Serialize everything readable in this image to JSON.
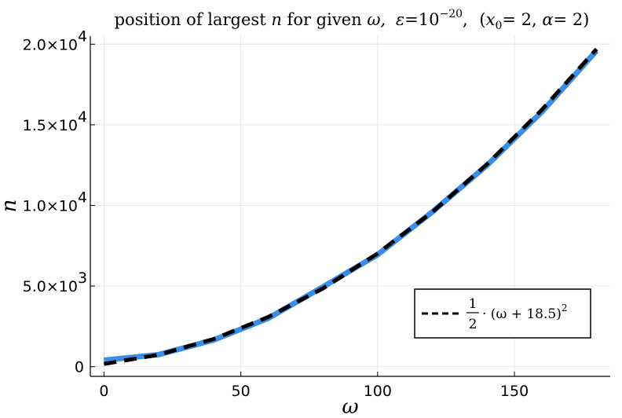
{
  "chart_data": {
    "type": "line",
    "title_prefix": "position of largest",
    "title_n": "n",
    "title_for_given": "for given",
    "title_omega": "ω,",
    "title_eps": "ε",
    "title_eq": "=",
    "title_ten": "10",
    "title_exp": "−20",
    "title_comma": ",",
    "title_params_open": "(",
    "title_x": "x",
    "title_x_sub": "0",
    "title_params_mid": "= 2,",
    "title_alpha": "α",
    "title_params_end": "= 2)",
    "xlabel": "ω",
    "ylabel": "n",
    "xlim": [
      -5,
      185
    ],
    "ylim": [
      -600,
      20500
    ],
    "grid": true,
    "x_ticks": [
      {
        "value": 0,
        "label": "0"
      },
      {
        "value": 50,
        "label": "50"
      },
      {
        "value": 100,
        "label": "100"
      },
      {
        "value": 150,
        "label": "150"
      }
    ],
    "y_ticks": [
      {
        "value": 0,
        "label": "0",
        "exp": ""
      },
      {
        "value": 5000,
        "label": "5.0×10",
        "exp": "3"
      },
      {
        "value": 10000,
        "label": "1.0×10",
        "exp": "4"
      },
      {
        "value": 15000,
        "label": "1.5×10",
        "exp": "4"
      },
      {
        "value": 20000,
        "label": "2.0×10",
        "exp": "4"
      }
    ],
    "series": [
      {
        "style": "solid",
        "color": "#3a8ee6",
        "x": [
          0,
          20,
          40,
          60,
          80,
          100,
          120,
          140,
          160,
          180
        ],
        "y": [
          400,
          750,
          1650,
          3000,
          4950,
          6950,
          9600,
          12500,
          15800,
          19600
        ]
      },
      {
        "style": "dashed",
        "color": "#000000",
        "x": [
          0,
          20,
          40,
          60,
          80,
          100,
          120,
          140,
          160,
          180
        ],
        "y": [
          171,
          741,
          1711,
          3081,
          4851,
          7021,
          9591,
          12561,
          15931,
          19701
        ]
      }
    ],
    "legend": {
      "placement": "bottom-right",
      "frac_num": "1",
      "frac_den": "2",
      "expr": "· (ω + 18.5)",
      "expr_exp": "2"
    }
  }
}
